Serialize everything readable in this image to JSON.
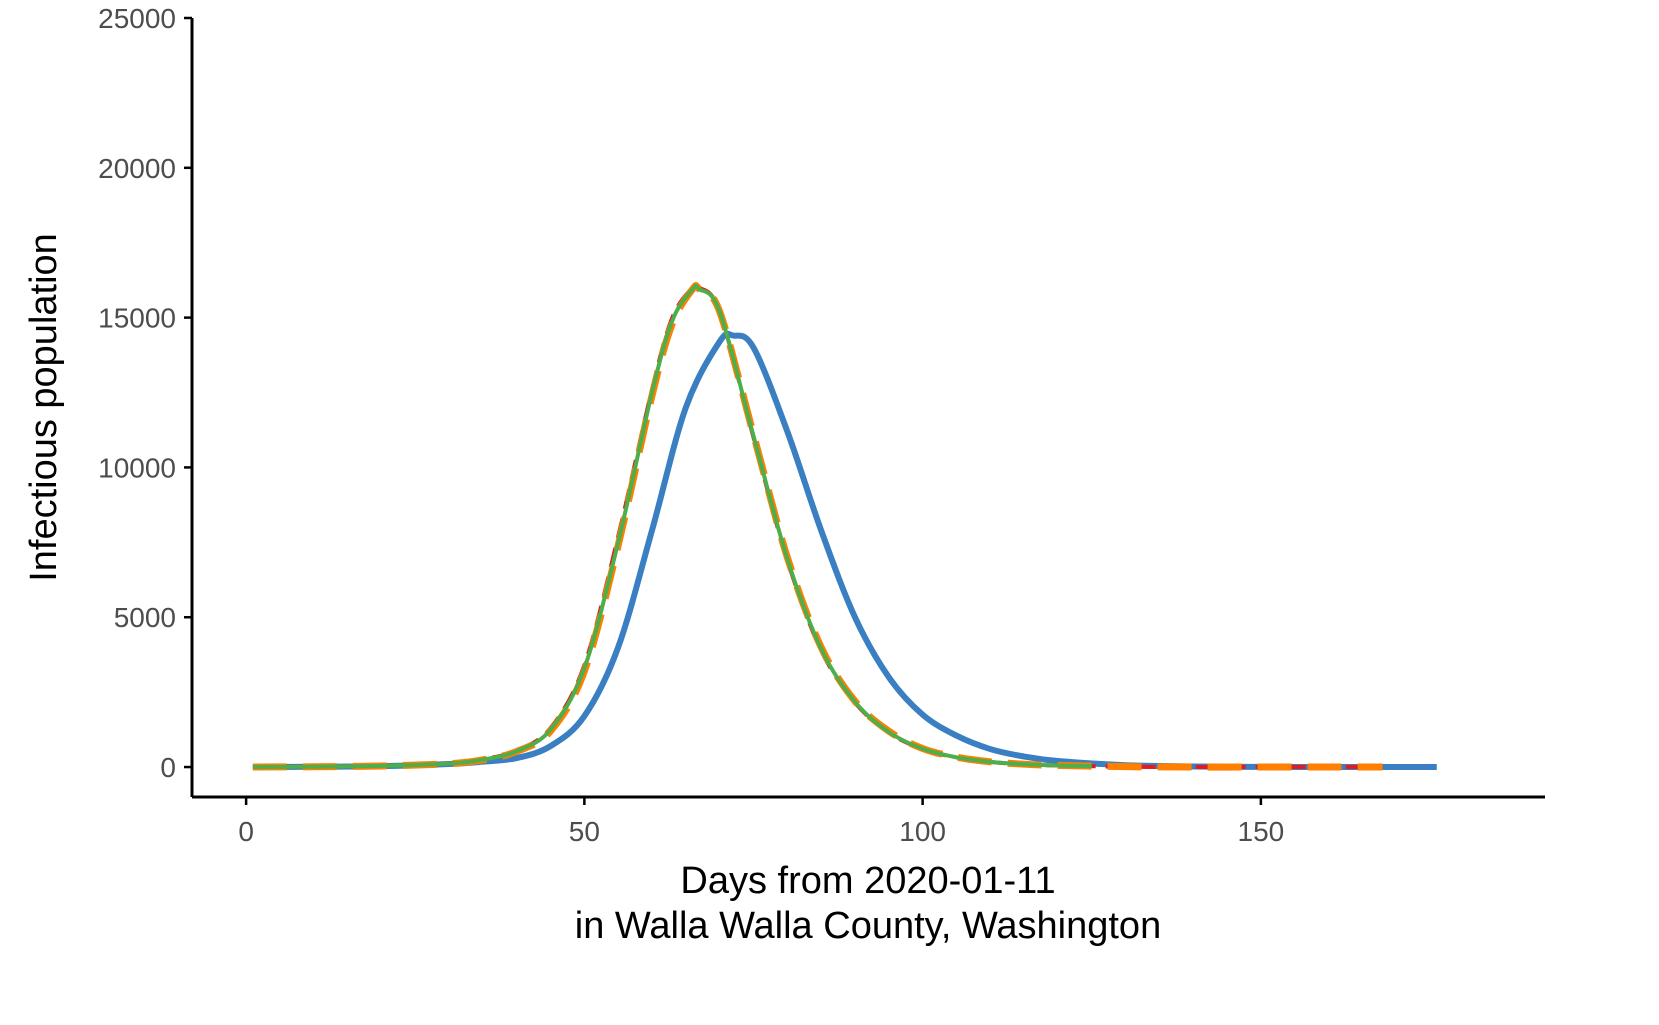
{
  "chart_data": {
    "type": "line",
    "xlabel_lines": [
      "Days from 2020-01-11",
      "in Walla Walla County, Washington"
    ],
    "ylabel": "Infectious population",
    "xlim": [
      -8,
      192
    ],
    "ylim": [
      -1000,
      25000
    ],
    "x_ticks": [
      0,
      50,
      100,
      150
    ],
    "y_ticks": [
      0,
      5000,
      10000,
      15000,
      20000,
      25000
    ],
    "grid": false,
    "legend": "none",
    "series": [
      {
        "color": "#3a7fc1",
        "dash": "solid",
        "width": 6,
        "x": [
          1,
          10,
          20,
          30,
          35,
          40,
          45,
          50,
          55,
          60,
          65,
          70,
          72,
          75,
          80,
          85,
          90,
          95,
          100,
          105,
          110,
          115,
          120,
          130,
          140,
          150,
          160,
          170,
          176
        ],
        "y": [
          0,
          10,
          30,
          100,
          180,
          300,
          700,
          1700,
          4000,
          7900,
          12000,
          14200,
          14400,
          14000,
          11200,
          7900,
          5000,
          3000,
          1750,
          1050,
          600,
          350,
          200,
          60,
          20,
          5,
          0,
          0,
          0
        ]
      },
      {
        "color": "#e41a1c",
        "dash": "20,10",
        "width": 4,
        "x": [
          1,
          10,
          20,
          30,
          35,
          40,
          45,
          50,
          55,
          60,
          63,
          66,
          67,
          70,
          75,
          80,
          85,
          90,
          95,
          100,
          105,
          110,
          115,
          120,
          130,
          140,
          150,
          160,
          166
        ],
        "y": [
          0,
          10,
          40,
          120,
          260,
          550,
          1300,
          3400,
          7700,
          12600,
          15000,
          16000,
          16000,
          15200,
          11000,
          6900,
          3900,
          2150,
          1150,
          600,
          320,
          170,
          90,
          50,
          10,
          0,
          0,
          0,
          0
        ]
      },
      {
        "color": "#ff7f00",
        "dash": "34,16",
        "width": 7,
        "x": [
          1,
          10,
          20,
          30,
          35,
          40,
          45,
          50,
          55,
          60,
          63,
          66,
          67,
          70,
          75,
          80,
          85,
          90,
          95,
          100,
          105,
          110,
          115,
          120,
          130,
          140,
          150,
          160,
          168
        ],
        "y": [
          0,
          10,
          35,
          110,
          240,
          520,
          1200,
          3200,
          7400,
          12400,
          14800,
          15950,
          15950,
          15200,
          11100,
          7000,
          4000,
          2200,
          1200,
          620,
          330,
          175,
          95,
          55,
          12,
          0,
          0,
          0,
          0
        ]
      },
      {
        "color": "#4daf4a",
        "dash": "solid",
        "width": 4,
        "x": [
          1,
          10,
          20,
          30,
          35,
          40,
          45,
          50,
          55,
          60,
          63,
          66,
          67,
          70,
          75,
          80,
          85,
          90,
          95,
          100,
          105,
          110,
          115,
          120,
          125
        ],
        "y": [
          0,
          10,
          38,
          115,
          250,
          530,
          1250,
          3300,
          7500,
          12500,
          14900,
          15950,
          15950,
          15200,
          11050,
          6950,
          3950,
          2180,
          1170,
          610,
          325,
          172,
          92,
          52,
          30
        ]
      }
    ]
  }
}
